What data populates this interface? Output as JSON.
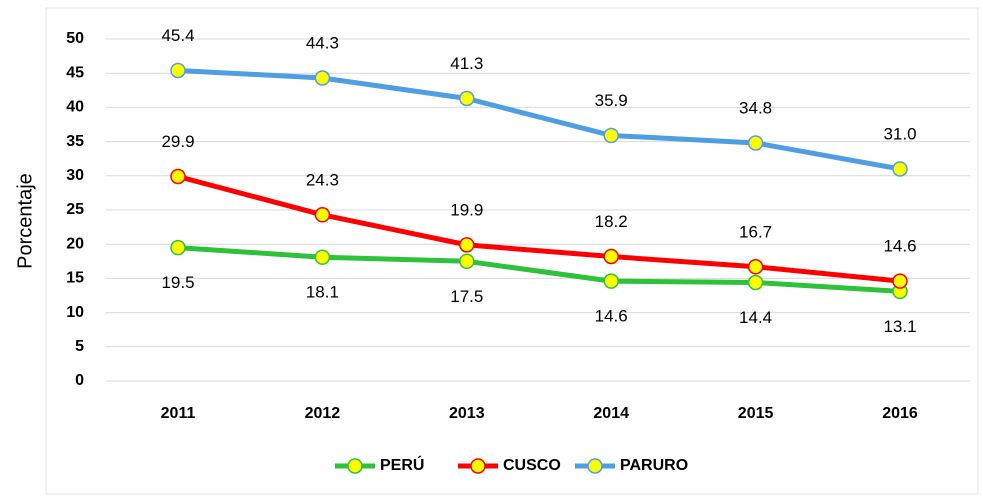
{
  "chart_data": {
    "type": "line",
    "y_label": "Porcentaje",
    "categories": [
      "2011",
      "2012",
      "2013",
      "2014",
      "2015",
      "2016"
    ],
    "series": [
      {
        "name": "PERÚ",
        "color": "#2ec23a",
        "values": [
          19.5,
          18.1,
          17.5,
          14.6,
          14.4,
          13.1
        ]
      },
      {
        "name": "CUSCO",
        "color": "#ff0000",
        "values": [
          29.9,
          24.3,
          19.9,
          18.2,
          16.7,
          14.6
        ]
      },
      {
        "name": "PARURO",
        "color": "#4f9ee3",
        "values": [
          45.4,
          44.3,
          41.3,
          35.9,
          34.8,
          31
        ],
        "value_labels": [
          "45.4",
          "44.3",
          "41.3",
          "35.9",
          "34.8",
          "31.0"
        ]
      }
    ],
    "marker_color": "#ffff00",
    "ylim": [
      0,
      50
    ],
    "yticks": [
      0,
      5,
      10,
      15,
      20,
      25,
      30,
      35,
      40,
      45,
      50
    ],
    "grid": true
  }
}
